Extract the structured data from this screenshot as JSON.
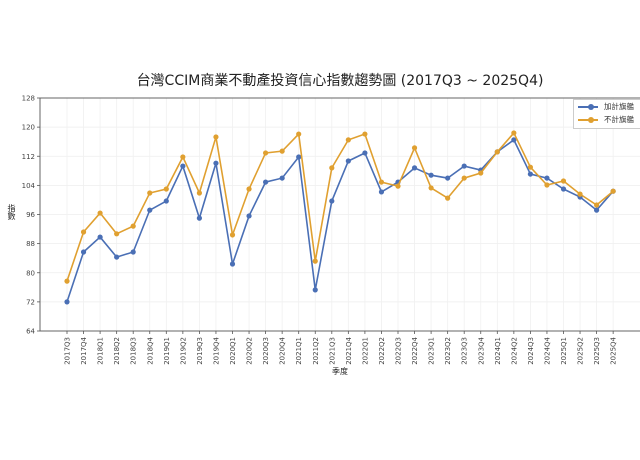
{
  "chart_data": {
    "type": "line",
    "title": "台灣CCIM商業不動產投資信心指數趨勢圖 (2017Q3 ~ 2025Q4)",
    "xlabel": "季度",
    "ylabel": "指數",
    "ylim": [
      64,
      128
    ],
    "yticks": [
      64,
      72,
      80,
      88,
      96,
      104,
      112,
      120,
      128
    ],
    "grid": true,
    "legend_position": "upper right",
    "categories": [
      "2017Q3",
      "2017Q4",
      "2018Q1",
      "2018Q2",
      "2018Q3",
      "2018Q4",
      "2019Q1",
      "2019Q2",
      "2019Q3",
      "2019Q4",
      "2020Q1",
      "2020Q2",
      "2020Q3",
      "2020Q4",
      "2021Q1",
      "2021Q2",
      "2021Q3",
      "2021Q4",
      "2022Q1",
      "2022Q2",
      "2022Q3",
      "2022Q4",
      "2023Q1",
      "2023Q2",
      "2023Q3",
      "2023Q4",
      "2024Q1",
      "2024Q2",
      "2024Q3",
      "2024Q4",
      "2025Q1",
      "2025Q2",
      "2025Q3",
      "2025Q4"
    ],
    "series": [
      {
        "name": "加計旗艦",
        "color": "#4a6fb5",
        "values": [
          72.0,
          85.7,
          89.8,
          84.3,
          85.7,
          97.2,
          99.7,
          109.3,
          95.0,
          110.1,
          82.4,
          95.6,
          104.9,
          106.0,
          111.8,
          75.3,
          99.7,
          110.7,
          112.9,
          102.2,
          104.9,
          108.8,
          106.8,
          106.0,
          109.3,
          108.2,
          113.2,
          116.5,
          107.1,
          106.0,
          103.0,
          100.8,
          97.2,
          102.4
        ]
      },
      {
        "name": "不計旗艦",
        "color": "#e0a030",
        "values": [
          77.7,
          91.2,
          96.4,
          90.7,
          92.8,
          101.9,
          103.0,
          111.8,
          101.9,
          117.3,
          90.4,
          103.0,
          112.9,
          113.4,
          118.1,
          83.2,
          108.8,
          116.5,
          118.1,
          104.9,
          103.8,
          114.3,
          103.3,
          100.5,
          106.0,
          107.4,
          113.2,
          118.4,
          109.0,
          104.1,
          105.2,
          101.6,
          98.6,
          102.4
        ]
      }
    ]
  }
}
